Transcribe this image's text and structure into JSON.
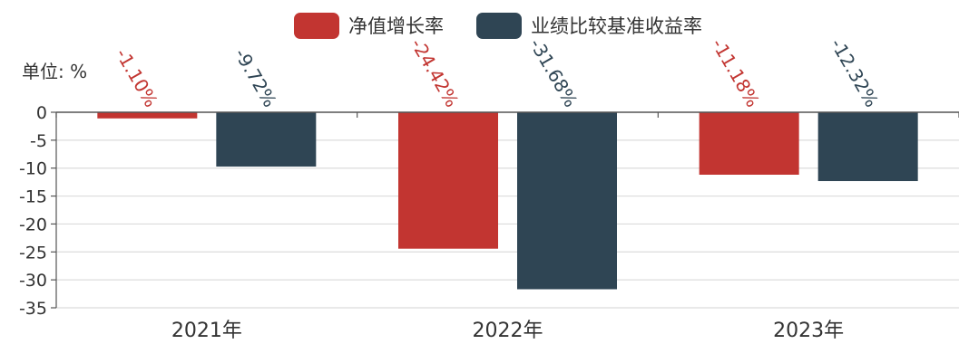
{
  "chart_data": {
    "type": "bar",
    "unit_label": "单位: %",
    "categories": [
      "2021年",
      "2022年",
      "2023年"
    ],
    "series": [
      {
        "name": "净值增长率",
        "color": "#c23531",
        "values": [
          -1.1,
          -24.42,
          -11.18
        ],
        "labels": [
          "-1.10%",
          "-24.42%",
          "-11.18%"
        ]
      },
      {
        "name": "业绩比较基准收益率",
        "color": "#2f4554",
        "values": [
          -9.72,
          -31.68,
          -12.32
        ],
        "labels": [
          "-9.72%",
          "-31.68%",
          "-12.32%"
        ]
      }
    ],
    "ylim": [
      -35,
      0
    ],
    "yticks": [
      0,
      -5,
      -10,
      -15,
      -20,
      -25,
      -30,
      -35
    ],
    "grid": true,
    "legend_position": "top-center"
  }
}
